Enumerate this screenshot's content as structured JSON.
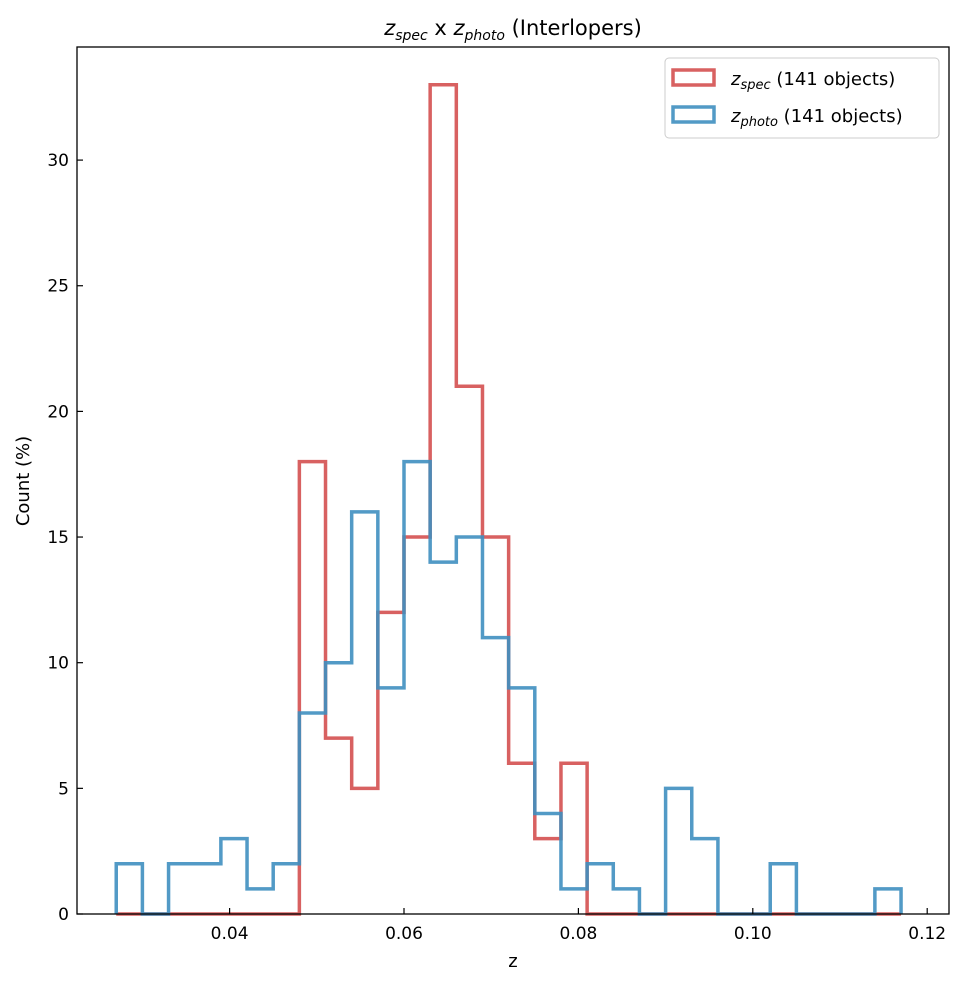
{
  "chart_data": {
    "type": "histogram",
    "title": {
      "a_sym": "z",
      "a_sub": "spec",
      "mid": " x ",
      "b_sym": "z",
      "b_sub": "photo",
      "suffix": " (Interlopers)"
    },
    "xlabel": "z",
    "ylabel": "Count (%)",
    "xlim": [
      0.0225,
      0.1225
    ],
    "ylim": [
      0,
      34.5
    ],
    "xticks": [
      0.04,
      0.06,
      0.08,
      0.1,
      0.12
    ],
    "xtick_labels": [
      "0.04",
      "0.06",
      "0.08",
      "0.10",
      "0.12"
    ],
    "yticks": [
      0,
      5,
      10,
      15,
      20,
      25,
      30
    ],
    "ytick_labels": [
      "0",
      "5",
      "10",
      "15",
      "20",
      "25",
      "30"
    ],
    "bin_edges": [
      0.027,
      0.03,
      0.033,
      0.036,
      0.039,
      0.042,
      0.045,
      0.048,
      0.051,
      0.054,
      0.057,
      0.06,
      0.063,
      0.066,
      0.069,
      0.072,
      0.075,
      0.078,
      0.081,
      0.084,
      0.087,
      0.09,
      0.093,
      0.096,
      0.099,
      0.102,
      0.105,
      0.108,
      0.111,
      0.114,
      0.117
    ],
    "series": [
      {
        "name": "z_spec",
        "legend_sym": "z",
        "legend_sub": "spec",
        "legend_suffix": " (141 objects)",
        "color": "#d45050",
        "values": [
          0,
          0,
          0,
          0,
          0,
          0,
          0,
          18,
          7,
          5,
          12,
          15,
          33,
          21,
          15,
          6,
          3,
          6,
          0,
          0,
          0,
          0,
          0,
          0,
          0,
          0,
          0,
          0,
          0,
          0
        ]
      },
      {
        "name": "z_photo",
        "legend_sym": "z",
        "legend_sub": "photo",
        "legend_suffix": " (141 objects)",
        "color": "#3f8fc0",
        "values": [
          2,
          0,
          2,
          2,
          3,
          1,
          2,
          8,
          10,
          16,
          9,
          18,
          14,
          15,
          11,
          9,
          4,
          1,
          2,
          1,
          0,
          5,
          3,
          0,
          0,
          2,
          0,
          0,
          0,
          1
        ]
      }
    ],
    "legend_position": "top-right"
  }
}
